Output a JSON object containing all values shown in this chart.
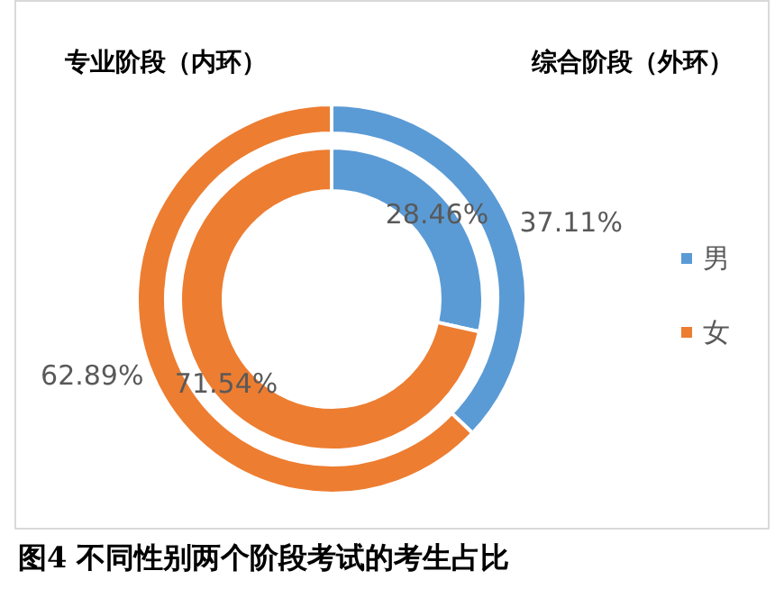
{
  "chart_data": {
    "type": "donut",
    "title": "图4  不同性别两个阶段考试的考生占比",
    "categories": [
      "男",
      "女"
    ],
    "colors": [
      "#5b9bd5",
      "#ed7d31"
    ],
    "series": [
      {
        "values": [
          28.46,
          71.54
        ],
        "value_labels": [
          "28.46%",
          "71.54%"
        ]
      },
      {
        "values": [
          37.11,
          62.89
        ],
        "value_labels": [
          "37.11%",
          "62.89%"
        ]
      }
    ],
    "annotations": [
      "专业阶段（内环）",
      "综合阶段（外环）"
    ],
    "legend": "right"
  }
}
